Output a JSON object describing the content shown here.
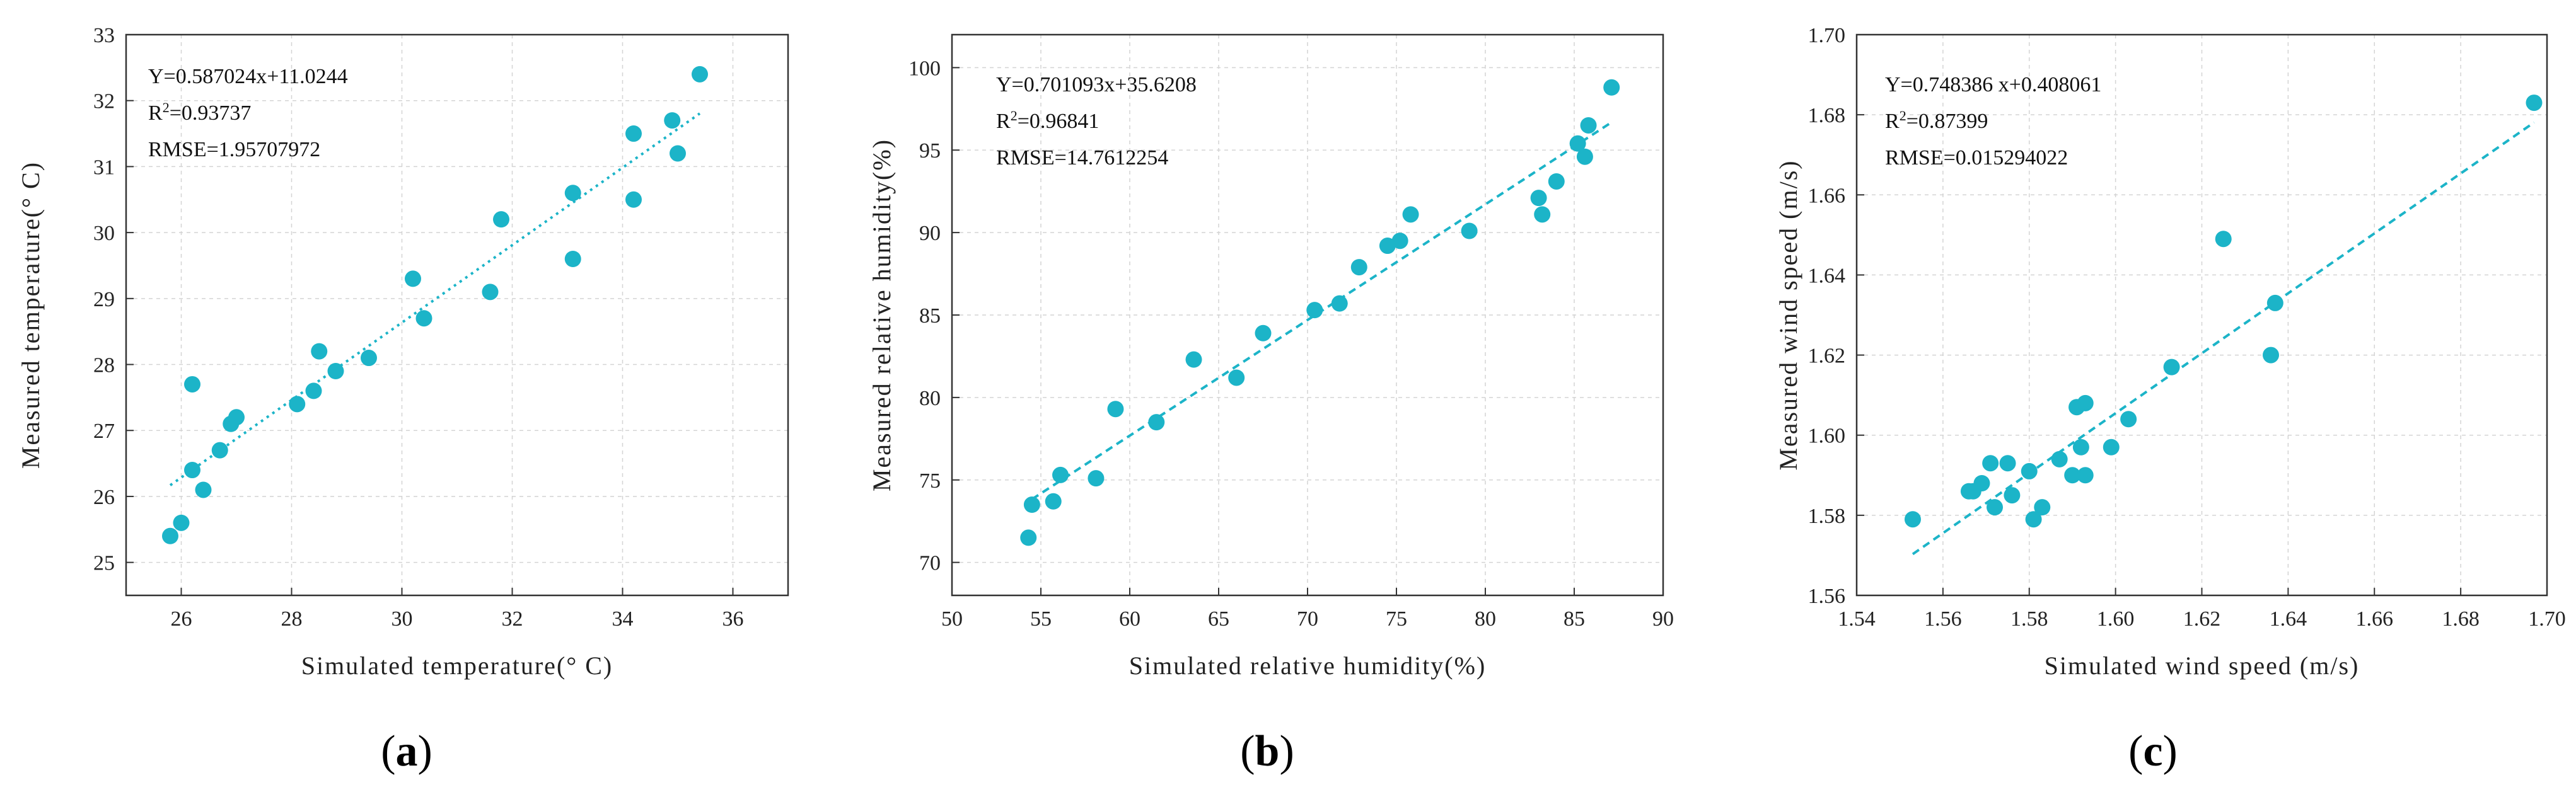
{
  "chart_data": [
    {
      "type": "scatter",
      "panel_label": "(a)",
      "panel_letter": "a",
      "xlabel": "Simulated temperature(° C)",
      "ylabel": "Measured temperature(° C)",
      "xlim": [
        25,
        37
      ],
      "ylim": [
        24.5,
        33
      ],
      "xticks": [
        26,
        28,
        30,
        32,
        34,
        36
      ],
      "xtick_labels": [
        "26",
        "28",
        "30",
        "32",
        "34",
        "36"
      ],
      "yticks": [
        25,
        26,
        27,
        28,
        29,
        30,
        31,
        32,
        33
      ],
      "ytick_labels": [
        "25",
        "26",
        "27",
        "28",
        "29",
        "30",
        "31",
        "32",
        "33"
      ],
      "equation": "Y=0.587024x+11.0244",
      "r2_prefix": "R",
      "r2_sup": "2",
      "r2_value": "=0.93737",
      "rmse": "RMSE=1.95707972",
      "fit_line": {
        "slope": 0.587024,
        "intercept": 11.0244,
        "x_range": [
          25.8,
          35.4
        ]
      },
      "grid": true,
      "marker_color": "#1cb4c8",
      "line_color": "#1cb4c8",
      "points": [
        [
          25.8,
          25.4
        ],
        [
          26.0,
          25.6
        ],
        [
          26.2,
          26.4
        ],
        [
          26.2,
          27.7
        ],
        [
          26.4,
          26.1
        ],
        [
          26.7,
          26.7
        ],
        [
          26.9,
          27.1
        ],
        [
          27.0,
          27.2
        ],
        [
          28.1,
          27.4
        ],
        [
          28.4,
          27.6
        ],
        [
          28.5,
          28.2
        ],
        [
          28.8,
          27.9
        ],
        [
          29.4,
          28.1
        ],
        [
          30.2,
          29.3
        ],
        [
          30.4,
          28.7
        ],
        [
          31.6,
          29.1
        ],
        [
          31.8,
          30.2
        ],
        [
          33.1,
          30.6
        ],
        [
          33.1,
          29.6
        ],
        [
          34.2,
          31.5
        ],
        [
          34.2,
          30.5
        ],
        [
          34.9,
          31.7
        ],
        [
          35.0,
          31.2
        ],
        [
          35.4,
          32.4
        ]
      ]
    },
    {
      "type": "scatter",
      "panel_label": "(b)",
      "panel_letter": "b",
      "xlabel": "Simulated relative humidity(%)",
      "ylabel": "Measured relative humidity(%)",
      "xlim": [
        50,
        90
      ],
      "ylim": [
        68,
        102
      ],
      "xticks": [
        50,
        55,
        60,
        65,
        70,
        75,
        80,
        85,
        90
      ],
      "xtick_labels": [
        "50",
        "55",
        "60",
        "65",
        "70",
        "75",
        "80",
        "85",
        "90"
      ],
      "yticks": [
        70,
        75,
        80,
        85,
        90,
        95,
        100
      ],
      "ytick_labels": [
        "70",
        "75",
        "80",
        "85",
        "90",
        "95",
        "100"
      ],
      "equation": "Y=0.701093x+35.6208",
      "r2_prefix": "R",
      "r2_sup": "2",
      "r2_value": "=0.96841",
      "rmse": "RMSE=14.7612254",
      "fit_line": {
        "slope": 0.701093,
        "intercept": 35.6208,
        "x_range": [
          54.5,
          87.0
        ]
      },
      "grid": true,
      "marker_color": "#1cb4c8",
      "line_color": "#1cb4c8",
      "points": [
        [
          54.3,
          71.5
        ],
        [
          54.5,
          73.5
        ],
        [
          55.7,
          73.7
        ],
        [
          56.1,
          75.3
        ],
        [
          58.1,
          75.1
        ],
        [
          59.2,
          79.3
        ],
        [
          61.5,
          78.5
        ],
        [
          63.6,
          82.3
        ],
        [
          66.0,
          81.2
        ],
        [
          67.5,
          83.9
        ],
        [
          70.4,
          85.3
        ],
        [
          71.8,
          85.7
        ],
        [
          72.9,
          87.9
        ],
        [
          74.5,
          89.2
        ],
        [
          75.2,
          89.5
        ],
        [
          75.8,
          91.1
        ],
        [
          79.1,
          90.1
        ],
        [
          83.0,
          92.1
        ],
        [
          83.2,
          91.1
        ],
        [
          84.0,
          93.1
        ],
        [
          85.2,
          95.4
        ],
        [
          85.6,
          94.6
        ],
        [
          85.8,
          96.5
        ],
        [
          87.1,
          98.8
        ]
      ]
    },
    {
      "type": "scatter",
      "panel_label": "(c)",
      "panel_letter": "c",
      "xlabel": "Simulated wind speed (m/s)",
      "ylabel": "Measured wind speed (m/s)",
      "xlim": [
        1.54,
        1.7
      ],
      "ylim": [
        1.56,
        1.7
      ],
      "xticks": [
        1.54,
        1.56,
        1.58,
        1.6,
        1.62,
        1.64,
        1.66,
        1.68,
        1.7
      ],
      "xtick_labels": [
        "1.54",
        "1.56",
        "1.58",
        "1.60",
        "1.62",
        "1.64",
        "1.66",
        "1.68",
        "1.70"
      ],
      "yticks": [
        1.56,
        1.58,
        1.6,
        1.62,
        1.64,
        1.66,
        1.68,
        1.7
      ],
      "ytick_labels": [
        "1.56",
        "1.58",
        "1.60",
        "1.62",
        "1.64",
        "1.66",
        "1.68",
        "1.70"
      ],
      "equation": "Y=0.748386 x+0.408061",
      "r2_prefix": "R",
      "r2_sup": "2",
      "r2_value": "=0.87399",
      "rmse": "RMSE=0.015294022",
      "fit_line": {
        "slope": 0.748386,
        "intercept": 0.408061,
        "x_range": [
          1.553,
          1.697
        ]
      },
      "grid": true,
      "marker_color": "#1cb4c8",
      "line_color": "#1cb4c8",
      "points": [
        [
          1.553,
          1.579
        ],
        [
          1.566,
          1.586
        ],
        [
          1.567,
          1.586
        ],
        [
          1.569,
          1.588
        ],
        [
          1.571,
          1.593
        ],
        [
          1.572,
          1.582
        ],
        [
          1.575,
          1.593
        ],
        [
          1.576,
          1.585
        ],
        [
          1.58,
          1.591
        ],
        [
          1.581,
          1.579
        ],
        [
          1.583,
          1.582
        ],
        [
          1.587,
          1.594
        ],
        [
          1.59,
          1.59
        ],
        [
          1.591,
          1.607
        ],
        [
          1.592,
          1.597
        ],
        [
          1.593,
          1.59
        ],
        [
          1.593,
          1.608
        ],
        [
          1.599,
          1.597
        ],
        [
          1.603,
          1.604
        ],
        [
          1.613,
          1.617
        ],
        [
          1.625,
          1.649
        ],
        [
          1.636,
          1.62
        ],
        [
          1.637,
          1.633
        ],
        [
          1.697,
          1.683
        ]
      ]
    }
  ]
}
